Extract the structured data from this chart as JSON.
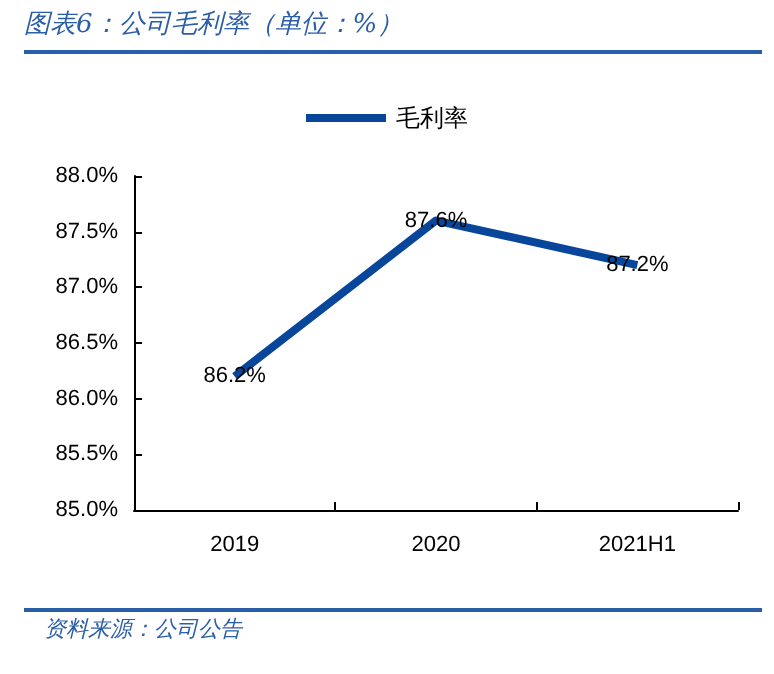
{
  "chart_data": {
    "type": "line",
    "title": "图表6：公司毛利率（单位：%）",
    "annotations": [
      "资料来源：公司公告"
    ],
    "categories": [
      "2019",
      "2020",
      "2021H1"
    ],
    "series": [
      {
        "name": "毛利率",
        "color": "#08469c",
        "values": [
          86.2,
          87.6,
          87.2
        ],
        "value_labels": [
          "86.2%",
          "87.6%",
          "87.2%"
        ]
      }
    ],
    "ylim": [
      85,
      88
    ],
    "yticks": [
      {
        "value": 85,
        "label": "85.0%"
      },
      {
        "value": 85.5,
        "label": "85.5%"
      },
      {
        "value": 86,
        "label": "86.0%"
      },
      {
        "value": 86.5,
        "label": "86.5%"
      },
      {
        "value": 87,
        "label": "87.0%"
      },
      {
        "value": 87.5,
        "label": "87.5%"
      },
      {
        "value": 88,
        "label": "88.0%"
      }
    ],
    "grid": false,
    "legend": "top",
    "marker": "none",
    "line_style": "solid"
  }
}
